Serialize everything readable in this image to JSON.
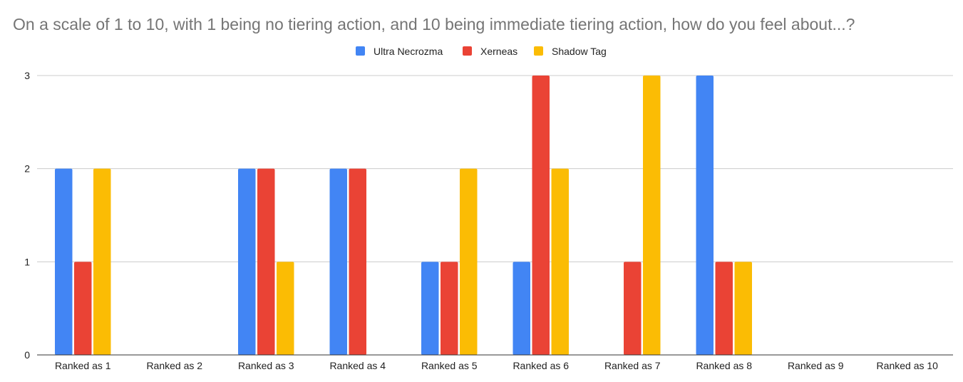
{
  "chart_data": {
    "type": "bar",
    "title": "On a scale of 1 to 10, with 1 being no tiering action, and 10 being immediate tiering action, how do you feel about...?",
    "xlabel": "",
    "ylabel": "",
    "categories": [
      "Ranked as 1",
      "Ranked as 2",
      "Ranked as 3",
      "Ranked as 4",
      "Ranked as 5",
      "Ranked as 6",
      "Ranked as 7",
      "Ranked as 8",
      "Ranked as 9",
      "Ranked as 10"
    ],
    "series": [
      {
        "name": "Ultra Necrozma",
        "color": "#4285F4",
        "values": [
          2,
          0,
          2,
          2,
          1,
          1,
          0,
          3,
          0,
          0
        ]
      },
      {
        "name": "Xerneas",
        "color": "#EA4335",
        "values": [
          1,
          0,
          2,
          2,
          1,
          3,
          1,
          1,
          0,
          0
        ]
      },
      {
        "name": "Shadow Tag",
        "color": "#FBBC04",
        "values": [
          2,
          0,
          1,
          0,
          2,
          2,
          3,
          1,
          0,
          0
        ]
      }
    ],
    "ylim": [
      0,
      3
    ],
    "yticks": [
      0,
      1,
      2,
      3
    ],
    "grid": true,
    "legend_position": "top"
  }
}
